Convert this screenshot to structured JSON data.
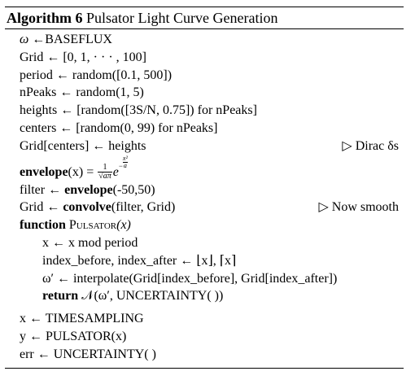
{
  "caption": {
    "label": "Algorithm 6",
    "title": "Pulsator Light Curve Generation"
  },
  "lines": {
    "l1_lhs": "ω",
    "l1_arrow": "←",
    "l1_rhs": "BASEFLUX",
    "l2": "Grid ← [0, 1, · · · , 100]",
    "l3": "period ← random([0.1, 500])",
    "l4": "nPeaks ← random(1, 5)",
    "l5": "heights ← [random([3S/N, 0.75]) for nPeaks]",
    "l6": "centers ← [random(0, 99) for nPeaks]",
    "l7": "Grid[centers] ← heights",
    "l7_comment": "▷ Dirac δs",
    "l8_kw": "envelope",
    "l8_arg": "(x) =",
    "l8_num": "1",
    "l8_den": "√aπ",
    "l8_e": "e",
    "l8_exp_sign": "−",
    "l8_exp_num": "x²",
    "l8_exp_den": "a",
    "l9_pre": "filter ←",
    "l9_kw": "envelope",
    "l9_post": "(-50,50)",
    "l10_pre": "Grid ←",
    "l10_kw": "convolve",
    "l10_post": "(filter, Grid)",
    "l10_comment": "▷ Now smooth",
    "l11_kw": "function",
    "l11_name": "Pulsator",
    "l11_arg": "(x)",
    "l12": "x ← x  mod period",
    "l13": "index_before, index_after ← ⌊x⌋, ⌈x⌉",
    "l14": "ω′ ← interpolate(Grid[index_before], Grid[index_after])",
    "l15_kw": "return",
    "l15_rest": "𝒩(ω′, UNCERTAINTY( ))",
    "l16": "x ← TIMESAMPLING",
    "l17": "y ← PULSATOR(x)",
    "l18": "err ← UNCERTAINTY( )"
  }
}
